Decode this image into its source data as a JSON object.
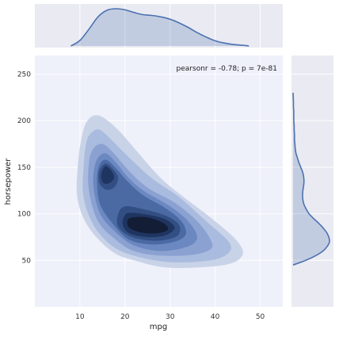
{
  "chart_data": {
    "type": "jointplot-kde",
    "xlabel": "mpg",
    "ylabel": "horsepower",
    "xlim": [
      0,
      55
    ],
    "ylim": [
      0,
      270
    ],
    "xticks": [
      10,
      20,
      30,
      40,
      50
    ],
    "yticks": [
      50,
      100,
      150,
      200,
      250
    ],
    "annotation": "pearsonr = -0.78; p = 7e-81",
    "grid": true,
    "colors": {
      "background": "#eaeaf2",
      "joint_background": "#eef0fa",
      "line": "#4c72b0",
      "fill": "#4c72b0",
      "grid": "#ffffff"
    },
    "contours": [
      {
        "level": 1,
        "color": "#c9d3e8",
        "points": [
          [
            14.5,
            205
          ],
          [
            18.5,
            190
          ],
          [
            23,
            165
          ],
          [
            28,
            138
          ],
          [
            33,
            118
          ],
          [
            40,
            92
          ],
          [
            45,
            70
          ],
          [
            46,
            55
          ],
          [
            42,
            45
          ],
          [
            30,
            42
          ],
          [
            22,
            50
          ],
          [
            17,
            60
          ],
          [
            12,
            85
          ],
          [
            9.5,
            115
          ],
          [
            9.5,
            150
          ],
          [
            10.5,
            185
          ],
          [
            12,
            202
          ]
        ]
      },
      {
        "level": 2,
        "color": "#a9bbde",
        "points": [
          [
            14.5,
            190
          ],
          [
            17.5,
            177
          ],
          [
            21,
            160
          ],
          [
            26,
            138
          ],
          [
            32,
            118
          ],
          [
            38,
            92
          ],
          [
            43,
            70
          ],
          [
            43,
            58
          ],
          [
            39,
            50
          ],
          [
            30,
            48
          ],
          [
            22,
            55
          ],
          [
            17,
            66
          ],
          [
            13,
            88
          ],
          [
            10.8,
            118
          ],
          [
            10.8,
            150
          ],
          [
            11.5,
            178
          ],
          [
            12.8,
            188
          ]
        ]
      },
      {
        "level": 3,
        "color": "#8aa1d1",
        "points": [
          [
            15,
            175
          ],
          [
            17.5,
            165
          ],
          [
            20.5,
            148
          ],
          [
            25,
            128
          ],
          [
            31,
            112
          ],
          [
            36,
            92
          ],
          [
            39,
            72
          ],
          [
            39,
            62
          ],
          [
            35,
            56
          ],
          [
            28,
            55
          ],
          [
            22,
            60
          ],
          [
            18,
            72
          ],
          [
            14,
            92
          ],
          [
            12,
            125
          ],
          [
            12,
            155
          ],
          [
            13,
            170
          ]
        ]
      },
      {
        "level": 4,
        "color": "#6b88c1",
        "points": [
          [
            15.5,
            165
          ],
          [
            18,
            155
          ],
          [
            20.5,
            140
          ],
          [
            24,
            125
          ],
          [
            30,
            108
          ],
          [
            34,
            92
          ],
          [
            36,
            75
          ],
          [
            34,
            65
          ],
          [
            28,
            60
          ],
          [
            22,
            66
          ],
          [
            18,
            80
          ],
          [
            14.5,
            100
          ],
          [
            13,
            130
          ],
          [
            13.5,
            155
          ]
        ]
      },
      {
        "level": 5,
        "color": "#4b6aa4",
        "points": [
          [
            15.8,
            158
          ],
          [
            18,
            149
          ],
          [
            20.5,
            135
          ],
          [
            24,
            120
          ],
          [
            29,
            106
          ],
          [
            32.5,
            92
          ],
          [
            33.5,
            78
          ],
          [
            31,
            70
          ],
          [
            26,
            67
          ],
          [
            21,
            72
          ],
          [
            17.5,
            88
          ],
          [
            14.5,
            110
          ],
          [
            13.8,
            135
          ],
          [
            14.3,
            152
          ]
        ]
      },
      {
        "level": 6,
        "color": "#324e82",
        "points": [
          [
            15.7,
            154
          ],
          [
            17.5,
            147
          ],
          [
            18.5,
            138
          ],
          [
            17.5,
            128
          ],
          [
            15.8,
            126
          ],
          [
            14.3,
            133
          ],
          [
            14.3,
            146
          ]
        ]
      },
      {
        "level": 6,
        "color": "#324e82",
        "points": [
          [
            20,
            108
          ],
          [
            24,
            105
          ],
          [
            29,
            98
          ],
          [
            32,
            88
          ],
          [
            31.5,
            76
          ],
          [
            27,
            71
          ],
          [
            21.5,
            75
          ],
          [
            18.5,
            86
          ],
          [
            18.5,
            100
          ]
        ]
      },
      {
        "level": 7,
        "color": "#1f3561",
        "points": [
          [
            15.6,
            151
          ],
          [
            17,
            146
          ],
          [
            17.6,
            139
          ],
          [
            16.6,
            133
          ],
          [
            15.2,
            133
          ],
          [
            14.7,
            141
          ]
        ]
      },
      {
        "level": 7,
        "color": "#1f3561",
        "points": [
          [
            21,
            101
          ],
          [
            25,
            99
          ],
          [
            29,
            94
          ],
          [
            31,
            85
          ],
          [
            29,
            77
          ],
          [
            25,
            75
          ],
          [
            21,
            79
          ],
          [
            19.5,
            88
          ],
          [
            19.8,
            97
          ]
        ]
      },
      {
        "level": 8,
        "color": "#131d35",
        "points": [
          [
            21.5,
            96
          ],
          [
            25,
            96
          ],
          [
            28.5,
            90
          ],
          [
            29.5,
            83
          ],
          [
            27,
            79
          ],
          [
            23.5,
            80
          ],
          [
            21,
            85
          ],
          [
            20.5,
            92
          ]
        ]
      }
    ],
    "marginal_x": {
      "x": [
        8,
        10,
        12,
        14,
        16,
        18,
        20,
        22,
        24,
        26,
        28,
        30,
        32,
        34,
        36,
        38,
        40,
        42,
        44,
        46,
        47.5
      ],
      "density": [
        0.0,
        0.15,
        0.45,
        0.78,
        0.96,
        1.0,
        0.97,
        0.9,
        0.84,
        0.82,
        0.78,
        0.72,
        0.62,
        0.5,
        0.36,
        0.24,
        0.14,
        0.08,
        0.04,
        0.02,
        0.0
      ]
    },
    "marginal_y": {
      "y": [
        45,
        50,
        55,
        60,
        65,
        70,
        75,
        80,
        85,
        90,
        95,
        100,
        105,
        110,
        115,
        120,
        125,
        130,
        135,
        140,
        145,
        150,
        155,
        160,
        165,
        170,
        175,
        180,
        185,
        190,
        195,
        200,
        205,
        210,
        215,
        220,
        225,
        230
      ],
      "density": [
        0.0,
        0.35,
        0.62,
        0.82,
        0.94,
        1.0,
        0.98,
        0.92,
        0.82,
        0.7,
        0.56,
        0.44,
        0.36,
        0.3,
        0.27,
        0.26,
        0.27,
        0.29,
        0.3,
        0.29,
        0.26,
        0.21,
        0.16,
        0.12,
        0.08,
        0.06,
        0.05,
        0.04,
        0.04,
        0.03,
        0.03,
        0.02,
        0.02,
        0.02,
        0.01,
        0.01,
        0.005,
        0.0
      ]
    }
  }
}
